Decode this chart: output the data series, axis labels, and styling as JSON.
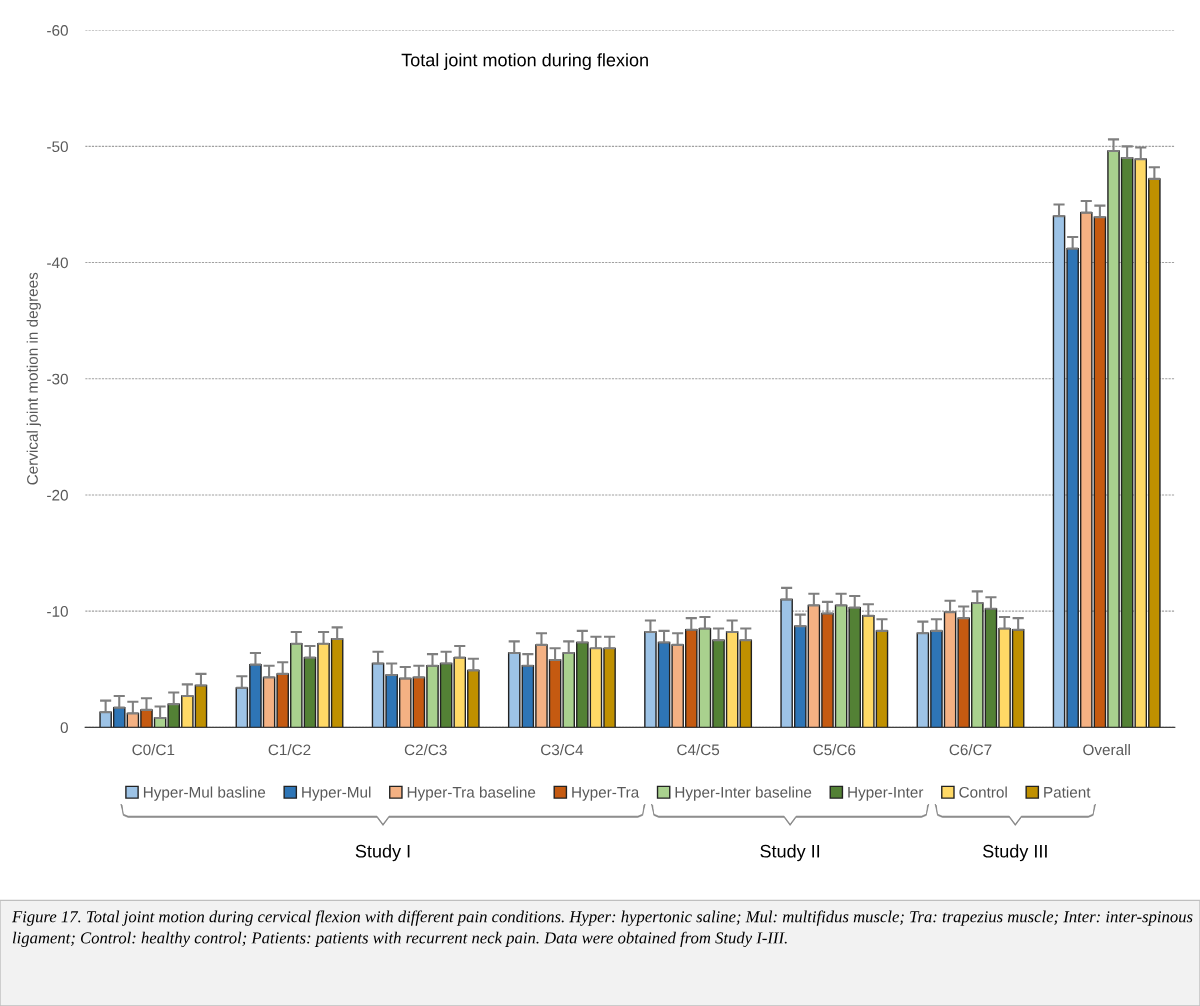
{
  "chart_data": {
    "type": "bar",
    "title": "Total joint motion during flexion",
    "ylabel": "Cervical joint motion in degrees",
    "categories": [
      "C0/C1",
      "C1/C2",
      "C2/C3",
      "C3/C4",
      "C4/C5",
      "C5/C6",
      "C6/C7",
      "Overall"
    ],
    "series": [
      {
        "name": "Hyper-Mul basline",
        "color": "#9dc3e6",
        "values": [
          -1.3,
          -3.4,
          -5.5,
          -6.4,
          -8.2,
          -11.0,
          -8.1,
          -44.0
        ],
        "errors": [
          [
            -2.3,
            -1.3
          ],
          [
            -4.4,
            -3.4
          ],
          [
            -6.5,
            -5.5
          ],
          [
            -7.4,
            -6.4
          ],
          [
            -9.2,
            -8.2
          ],
          [
            -12.0,
            -11.0
          ],
          [
            -9.1,
            -8.1
          ],
          [
            -45.0,
            -44.0
          ]
        ]
      },
      {
        "name": "Hyper-Mul",
        "color": "#2e75b6",
        "values": [
          -1.7,
          -5.4,
          -4.5,
          -5.3,
          -7.3,
          -8.7,
          -8.3,
          -41.2
        ],
        "errors": [
          [
            -2.7,
            -1.7
          ],
          [
            -6.4,
            -5.4
          ],
          [
            -5.5,
            -4.5
          ],
          [
            -6.3,
            -5.3
          ],
          [
            -8.3,
            -7.3
          ],
          [
            -9.7,
            -8.7
          ],
          [
            -9.3,
            -8.3
          ],
          [
            -42.2,
            -41.2
          ]
        ]
      },
      {
        "name": "Hyper-Tra baseline",
        "color": "#f4b183",
        "values": [
          -1.2,
          -4.3,
          -4.2,
          -7.1,
          -7.1,
          -10.5,
          -9.9,
          -44.3
        ],
        "errors": [
          [
            -2.2,
            -1.2
          ],
          [
            -5.3,
            -4.3
          ],
          [
            -5.2,
            -4.2
          ],
          [
            -8.1,
            -7.1
          ],
          [
            -8.1,
            -7.1
          ],
          [
            -11.5,
            -10.5
          ],
          [
            -10.9,
            -9.9
          ],
          [
            -45.3,
            -44.3
          ]
        ]
      },
      {
        "name": "Hyper-Tra",
        "color": "#c55a11",
        "values": [
          -1.5,
          -4.6,
          -4.3,
          -5.8,
          -8.4,
          -9.8,
          -9.4,
          -43.9
        ],
        "errors": [
          [
            -2.5,
            -1.5
          ],
          [
            -5.6,
            -4.6
          ],
          [
            -5.3,
            -4.3
          ],
          [
            -6.8,
            -5.8
          ],
          [
            -9.4,
            -8.4
          ],
          [
            -10.8,
            -9.8
          ],
          [
            -10.4,
            -9.4
          ],
          [
            -44.9,
            -43.9
          ]
        ]
      },
      {
        "name": "Hyper-Inter baseline",
        "color": "#a9d18e",
        "values": [
          -0.8,
          -7.2,
          -5.3,
          -6.4,
          -8.5,
          -10.5,
          -10.7,
          -49.6
        ],
        "errors": [
          [
            -1.8,
            -0.8
          ],
          [
            -8.2,
            -7.2
          ],
          [
            -6.3,
            -5.3
          ],
          [
            -7.4,
            -6.4
          ],
          [
            -9.5,
            -8.5
          ],
          [
            -11.5,
            -10.5
          ],
          [
            -11.7,
            -10.7
          ],
          [
            -50.6,
            -49.6
          ]
        ]
      },
      {
        "name": "Hyper-Inter",
        "color": "#538135",
        "values": [
          -2.0,
          -6.0,
          -5.5,
          -7.3,
          -7.5,
          -10.3,
          -10.2,
          -49.0
        ],
        "errors": [
          [
            -3.0,
            -2.0
          ],
          [
            -7.0,
            -6.0
          ],
          [
            -6.5,
            -5.5
          ],
          [
            -8.3,
            -7.3
          ],
          [
            -8.5,
            -7.5
          ],
          [
            -11.3,
            -10.3
          ],
          [
            -11.2,
            -10.2
          ],
          [
            -50.0,
            -49.0
          ]
        ]
      },
      {
        "name": "Control",
        "color": "#ffd966",
        "values": [
          -2.7,
          -7.2,
          -6.0,
          -6.8,
          -8.2,
          -9.6,
          -8.5,
          -48.9
        ],
        "errors": [
          [
            -3.7,
            -2.7
          ],
          [
            -8.2,
            -7.2
          ],
          [
            -7.0,
            -6.0
          ],
          [
            -7.8,
            -6.8
          ],
          [
            -9.2,
            -8.2
          ],
          [
            -10.6,
            -9.6
          ],
          [
            -9.5,
            -8.5
          ],
          [
            -49.9,
            -48.9
          ]
        ]
      },
      {
        "name": "Patient",
        "color": "#bf9000",
        "values": [
          -3.6,
          -7.6,
          -4.9,
          -6.8,
          -7.5,
          -8.3,
          -8.4,
          -47.2
        ],
        "errors": [
          [
            -4.6,
            -3.6
          ],
          [
            -8.6,
            -7.6
          ],
          [
            -5.9,
            -4.9
          ],
          [
            -7.8,
            -6.8
          ],
          [
            -8.5,
            -7.5
          ],
          [
            -9.3,
            -8.3
          ],
          [
            -9.4,
            -8.4
          ],
          [
            -48.2,
            -47.2
          ]
        ]
      }
    ],
    "ylim": [
      0,
      -60
    ],
    "yticks": [
      0,
      -10,
      -20,
      -30,
      -40,
      -50,
      -60
    ],
    "grid": "y",
    "legend": "bottom",
    "annotations": [
      "Study I",
      "Study II",
      "Study III",
      "Figure 17. Total joint motion during cervical flexion with different pain conditions. Hyper: hypertonic saline; Mul: multifidus muscle; Tra: trapezius muscle; Inter: inter-spinous ligament; Control: healthy control; Patients: patients with recurrent neck pain. Data were obtained from Study I-III."
    ]
  }
}
